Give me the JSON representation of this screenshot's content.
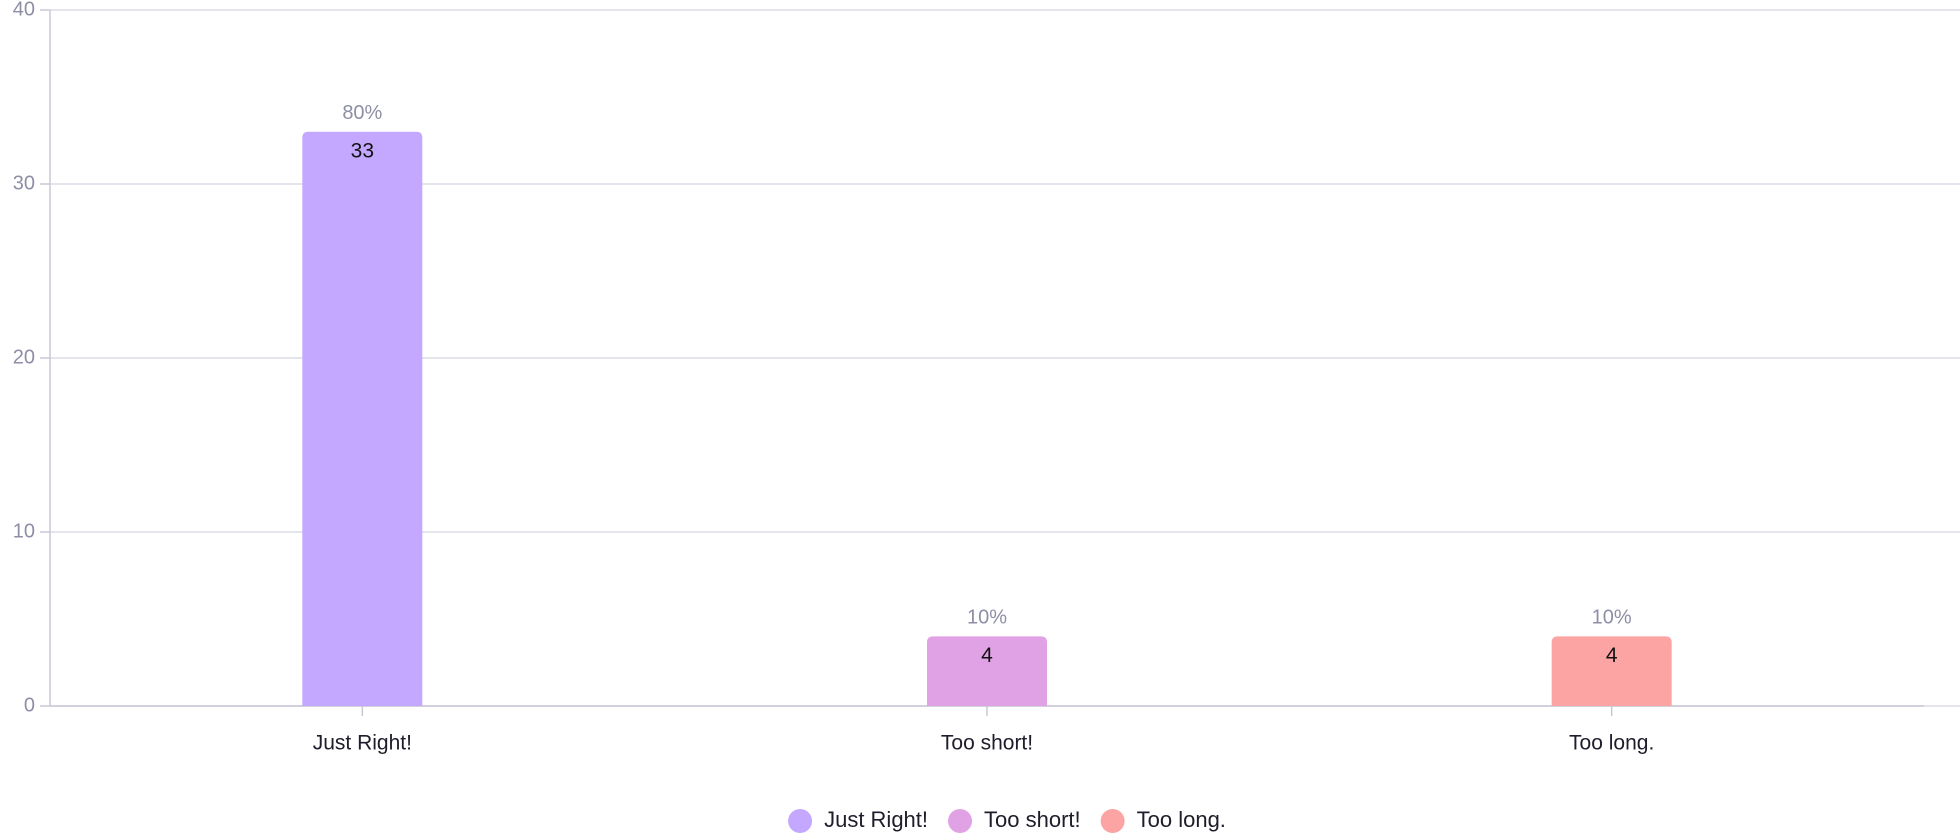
{
  "chart_data": {
    "type": "bar",
    "categories": [
      "Just Right!",
      "Too short!",
      "Too long."
    ],
    "values": [
      33,
      4,
      4
    ],
    "percent_labels": [
      "80%",
      "10%",
      "10%"
    ],
    "colors": [
      "#c4a8ff",
      "#e1a1e5",
      "#fca3a3"
    ],
    "ylim": [
      0,
      40
    ],
    "yticks": [
      0,
      10,
      20,
      30,
      40
    ],
    "grid": true,
    "legend": "bottom"
  }
}
